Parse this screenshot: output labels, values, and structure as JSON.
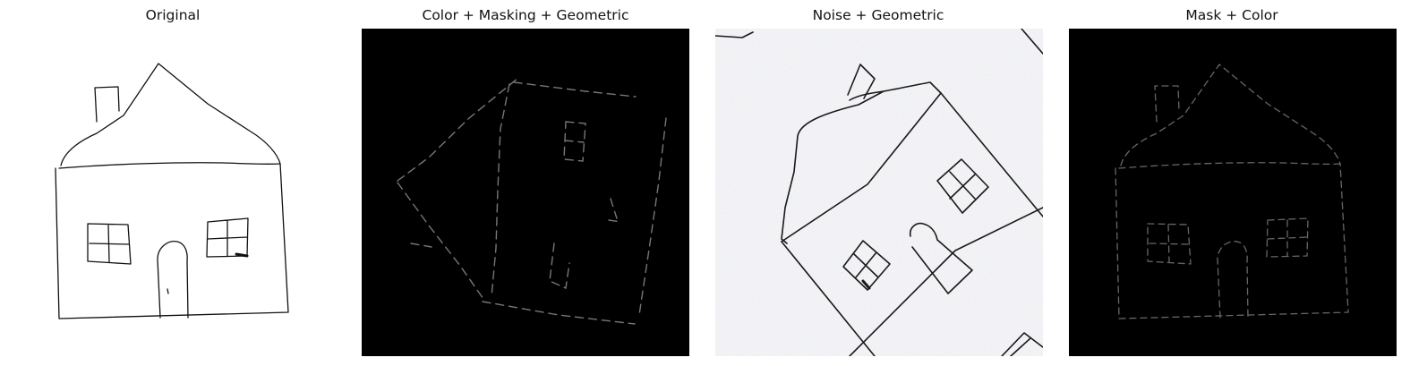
{
  "figure": {
    "panels": [
      {
        "title": "Original",
        "background": "#ffffff",
        "stroke": "#111111"
      },
      {
        "title": "Color + Masking + Geometric",
        "background": "#000000",
        "stroke": "#6f6f6f"
      },
      {
        "title": "Noise + Geometric",
        "background": "#f1f1f5",
        "stroke": "#1a1a1a"
      },
      {
        "title": "Mask + Color",
        "background": "#000000",
        "stroke": "#5c5c5c"
      }
    ]
  }
}
